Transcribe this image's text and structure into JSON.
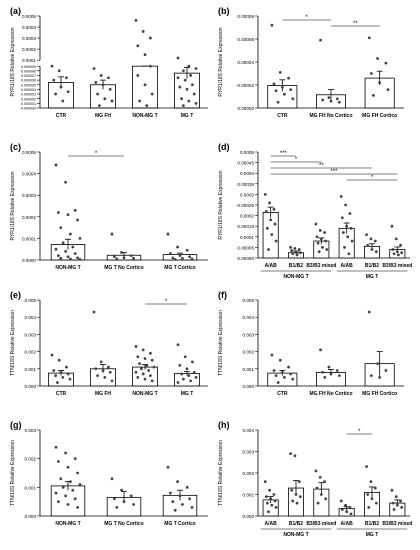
{
  "chart_data": [
    {
      "panel": "(a)",
      "type": "bar",
      "ylabel": "RYR1/18S Relative Expression",
      "categories": [
        "CTR",
        "MG FH",
        "NON-MG T",
        "MG T"
      ],
      "values": [
        5.5e-06,
        5e-06,
        1.7e-05,
        7.5e-06
      ],
      "errors": [
        1.2e-06,
        1e-06,
        2e-06,
        1.2e-06
      ],
      "points": [
        [
          9.5e-06,
          8e-06,
          6.5e-06,
          6e-06,
          4.5e-06,
          3.5e-06,
          3e-06,
          1.5e-06
        ],
        [
          8.5e-06,
          7e-06,
          6.5e-06,
          5.5e-06,
          5e-06,
          4e-06,
          3e-06,
          2e-06,
          1.5e-06,
          5e-07
        ],
        [
          0.00046,
          0.00036,
          0.0003,
          0.00023,
          0.00015,
          2.5e-05,
          2.1e-05,
          1.9e-05,
          1.7e-05,
          1.6e-05,
          1.5e-05,
          1.4e-05,
          1.1e-05,
          9e-06,
          7e-06,
          5e-06,
          3e-06,
          1.5e-06,
          5e-07
        ],
        [
          0.00012,
          8.5e-05,
          2.5e-05,
          1.6e-05,
          1.4e-05,
          1.2e-05,
          1.1e-05,
          9e-06,
          8.5e-06,
          8e-06,
          7e-06,
          6.5e-06,
          6e-06,
          5e-06,
          4.5e-06,
          4e-06,
          3e-06,
          2e-06,
          1.5e-06,
          1e-06,
          5e-07
        ]
      ],
      "yticks_top": [
        "0.0005",
        "0.0004",
        "0.0003",
        "0.0002",
        "0.0001"
      ],
      "yticks_bottom": [
        "0.000030",
        "0.000009",
        "0.000008",
        "0.000007",
        "0.000006",
        "0.000005",
        "0.000004",
        "0.000003",
        "0.000002",
        "0.000001",
        "0.000000"
      ]
    },
    {
      "panel": "(b)",
      "type": "bar",
      "ylabel": "RYR1/18S Relative Expression",
      "categories": [
        "CTR",
        "MG FH No Cortico",
        "MG FH Cortico"
      ],
      "values": [
        1.95e-05,
        1.15e-05,
        2.6e-05
      ],
      "errors": [
        5e-06,
        4.5e-06,
        6e-06
      ],
      "points": [
        [
          7.2e-05,
          3.1e-05,
          2.6e-05,
          2.1e-05,
          1.8e-05,
          1.6e-05,
          1.5e-05,
          1.2e-05,
          8e-06,
          5e-06
        ],
        [
          5.9e-05,
          9e-06,
          8e-06,
          7e-06,
          6e-06,
          5e-06
        ],
        [
          6.1e-05,
          4.3e-05,
          3.9e-05,
          3e-05,
          2.2e-05,
          1.6e-05,
          1.1e-05
        ]
      ],
      "ylim": [
        0,
        8e-05
      ],
      "yticks": [
        "0.00008",
        "0.00006",
        "0.00004",
        "0.00002",
        "0.00000"
      ],
      "significance": [
        {
          "from": 0,
          "to": 1,
          "label": "*"
        },
        {
          "from": 1,
          "to": 2,
          "label": "**"
        }
      ]
    },
    {
      "panel": "(c)",
      "type": "bar",
      "ylabel": "RYR1/18S Relative Expression",
      "categories": [
        "NON-MG T",
        "MG T No Cortico",
        "MG T Cortico"
      ],
      "values": [
        7.2e-05,
        2.2e-05,
        2.5e-05
      ],
      "errors": [
        2.4e-05,
        1.2e-05,
        7e-06
      ],
      "points": [
        [
          0.00044,
          0.00036,
          0.00023,
          0.00022,
          0.00021,
          0.000185,
          0.00015,
          0.00012,
          0.0001,
          8e-05,
          6e-05,
          5e-05,
          4e-05,
          3e-05,
          2e-05,
          1.5e-05,
          1e-05,
          8e-06,
          5e-06,
          3e-06
        ],
        [
          0.00012,
          3.5e-05,
          2e-05,
          1.5e-05,
          1e-05,
          8e-06,
          5e-06
        ],
        [
          0.00012,
          6e-05,
          4.5e-05,
          3e-05,
          2e-05,
          1.5e-05,
          1e-05,
          8e-06,
          5e-06,
          3e-06
        ]
      ],
      "ylim": [
        0,
        0.0005
      ],
      "yticks": [
        "0.0005",
        "0.0004",
        "0.0003",
        "0.0002",
        "0.0001",
        "0.0000"
      ],
      "significance": [
        {
          "from": 0,
          "to": 1,
          "label": "*"
        }
      ]
    },
    {
      "panel": "(d)",
      "type": "bar",
      "ylabel": "RYR1/18S Relative Expression",
      "categories": [
        "A/AB",
        "B1/B2",
        "B3/B3 mixed",
        "A/AB",
        "B1/B2",
        "B3/B3 mixed"
      ],
      "group_labels": [
        "NON-MG T",
        "MG T"
      ],
      "values": [
        0.000215,
        2.5e-05,
        8e-05,
        0.00014,
        5.5e-05,
        4e-05
      ],
      "errors": [
        2.5e-05,
        8e-06,
        1.5e-05,
        2.5e-05,
        1.2e-05,
        1.2e-05
      ],
      "points": [
        [
          0.0003,
          0.00026,
          0.00023,
          0.00022,
          0.00018,
          0.00016,
          0.00014,
          0.00011,
          8e-05,
          4e-05
        ],
        [
          5e-05,
          4.5e-05,
          4e-05,
          3.5e-05,
          3e-05,
          2.5e-05,
          2e-05,
          1.5e-05
        ],
        [
          0.00016,
          0.00013,
          0.00012,
          0.0001,
          9e-05,
          8e-05,
          7e-05,
          5e-05,
          4e-05,
          3e-05
        ],
        [
          0.00029,
          0.00025,
          0.00021,
          0.00019,
          0.00015,
          0.00014,
          0.00012,
          0.0001,
          8e-05,
          5e-05,
          2e-05
        ],
        [
          0.00011,
          9e-05,
          8e-05,
          6e-05,
          4e-05,
          3e-05
        ],
        [
          0.00015,
          9e-05,
          6e-05,
          4e-05,
          3e-05,
          2.5e-05,
          2e-05,
          1.5e-05
        ]
      ],
      "ylim": [
        0,
        0.0005
      ],
      "yticks": [
        "0.0005",
        "0.00045",
        "0.0004",
        "0.00035",
        "0.0003",
        "0.00025",
        "0.0002",
        "0.00015",
        "0.0001",
        "0.00005",
        "0.00000"
      ],
      "significance": [
        {
          "from": 0,
          "to": 1,
          "label": "***"
        },
        {
          "from": 0,
          "to": 2,
          "label": "*"
        },
        {
          "from": 0,
          "to": 4,
          "label": "**"
        },
        {
          "from": 0,
          "to": 5,
          "label": "***"
        },
        {
          "from": 3,
          "to": 5,
          "label": "*"
        }
      ]
    },
    {
      "panel": "(e)",
      "type": "bar",
      "ylabel": "TTN/18S Relative Expression",
      "categories": [
        "CTR",
        "MG FH",
        "NON-MG T",
        "MG T"
      ],
      "values": [
        0.00075,
        0.001,
        0.0011,
        0.00072
      ],
      "errors": [
        0.00015,
        0.00025,
        0.00015,
        0.00012
      ],
      "points": [
        [
          0.0018,
          0.0015,
          0.0011,
          0.0009,
          0.0008,
          0.0007,
          0.0006,
          0.0005,
          0.0004,
          0.0002
        ],
        [
          0.0043,
          0.0014,
          0.0011,
          0.001,
          0.0009,
          0.0008,
          0.0006,
          0.0005,
          0.0003
        ],
        [
          0.0023,
          0.0021,
          0.0019,
          0.0017,
          0.0016,
          0.0015,
          0.0013,
          0.0012,
          0.0011,
          0.001,
          0.0009,
          0.0008,
          0.0007,
          0.0006,
          0.0005,
          0.0004,
          0.0003
        ],
        [
          0.0024,
          0.0017,
          0.0014,
          0.0012,
          0.001,
          0.0008,
          0.0007,
          0.0006,
          0.0005,
          0.0004,
          0.0003,
          0.0002
        ]
      ],
      "ylim": [
        0,
        0.005
      ],
      "yticks": [
        "0.005",
        "0.004",
        "0.003",
        "0.002",
        "0.001",
        "0.000"
      ],
      "significance": [
        {
          "from": 2,
          "to": 3,
          "label": "*"
        }
      ]
    },
    {
      "panel": "(f)",
      "type": "bar",
      "ylabel": "TTN/18S Relative Expression",
      "categories": [
        "CTR",
        "MG FH No Cortico",
        "MG FH Cortico"
      ],
      "values": [
        0.00075,
        0.00078,
        0.0013
      ],
      "errors": [
        0.00015,
        0.00018,
        0.0007
      ],
      "points": [
        [
          0.0018,
          0.0015,
          0.0011,
          0.0009,
          0.0008,
          0.0007,
          0.0006,
          0.0005,
          0.0004,
          0.0002
        ],
        [
          0.0021,
          0.0011,
          0.0009,
          0.0008,
          0.0007,
          0.0006,
          0.0005
        ],
        [
          0.0043,
          0.0013,
          0.0009,
          0.0006,
          0.0005
        ]
      ],
      "ylim": [
        0,
        0.005
      ],
      "yticks": [
        "0.005",
        "0.004",
        "0.003",
        "0.002",
        "0.001",
        "0.000"
      ]
    },
    {
      "panel": "(g)",
      "type": "bar",
      "ylabel": "TTN/18S Relative Expression",
      "categories": [
        "NON-MG T",
        "MG T No Cortico",
        "MG T Cortico"
      ],
      "values": [
        0.00105,
        0.00065,
        0.00072
      ],
      "errors": [
        0.00015,
        0.0002,
        0.00018
      ],
      "points": [
        [
          0.0024,
          0.0022,
          0.002,
          0.0019,
          0.0017,
          0.0015,
          0.0013,
          0.0012,
          0.0011,
          0.001,
          0.0009,
          0.0008,
          0.0007,
          0.0006,
          0.0005,
          0.0004,
          0.0003
        ],
        [
          0.0013,
          0.0009,
          0.0007,
          0.0006,
          0.0005,
          0.0004,
          0.0003
        ],
        [
          0.0017,
          0.0012,
          0.001,
          0.0008,
          0.0007,
          0.0006,
          0.0005,
          0.0004,
          0.0003,
          0.0002
        ]
      ],
      "ylim": [
        0,
        0.003
      ],
      "yticks": [
        "0.003",
        "0.002",
        "0.001",
        "0.000"
      ]
    },
    {
      "panel": "(h)",
      "type": "bar",
      "ylabel": "TTN/18S Relative Expression",
      "categories": [
        "A/AB",
        "B1/B2",
        "B3/B3 mixed",
        "A/AB",
        "B1/B2",
        "B3/B3 mixed"
      ],
      "group_labels": [
        "NON-MG T",
        "MG T"
      ],
      "values": [
        0.00075,
        0.0013,
        0.00125,
        0.00035,
        0.0011,
        0.0006
      ],
      "errors": [
        0.00015,
        0.00035,
        0.0003,
        8e-05,
        0.00025,
        0.00015
      ],
      "points": [
        [
          0.0016,
          0.0012,
          0.001,
          0.0009,
          0.0008,
          0.0007,
          0.0006,
          0.0005,
          0.0004,
          0.0002
        ],
        [
          0.0029,
          0.0028,
          0.0016,
          0.0012,
          0.001,
          0.0009,
          0.0007,
          0.0006
        ],
        [
          0.0021,
          0.0018,
          0.0016,
          0.0013,
          0.001,
          0.0008,
          0.0006
        ],
        [
          0.0007,
          0.0005,
          0.0004,
          0.0003,
          0.0002,
          0.0001
        ],
        [
          0.0023,
          0.0016,
          0.0013,
          0.001,
          0.0008,
          0.0006,
          0.0004
        ],
        [
          0.0012,
          0.0009,
          0.0007,
          0.0006,
          0.0005,
          0.0004,
          0.0003
        ]
      ],
      "ylim": [
        0,
        0.004
      ],
      "yticks": [
        "0.004",
        "0.003",
        "0.002",
        "0.001",
        "0.000"
      ],
      "significance": [
        {
          "from": 3,
          "to": 4,
          "label": "*"
        }
      ]
    }
  ]
}
